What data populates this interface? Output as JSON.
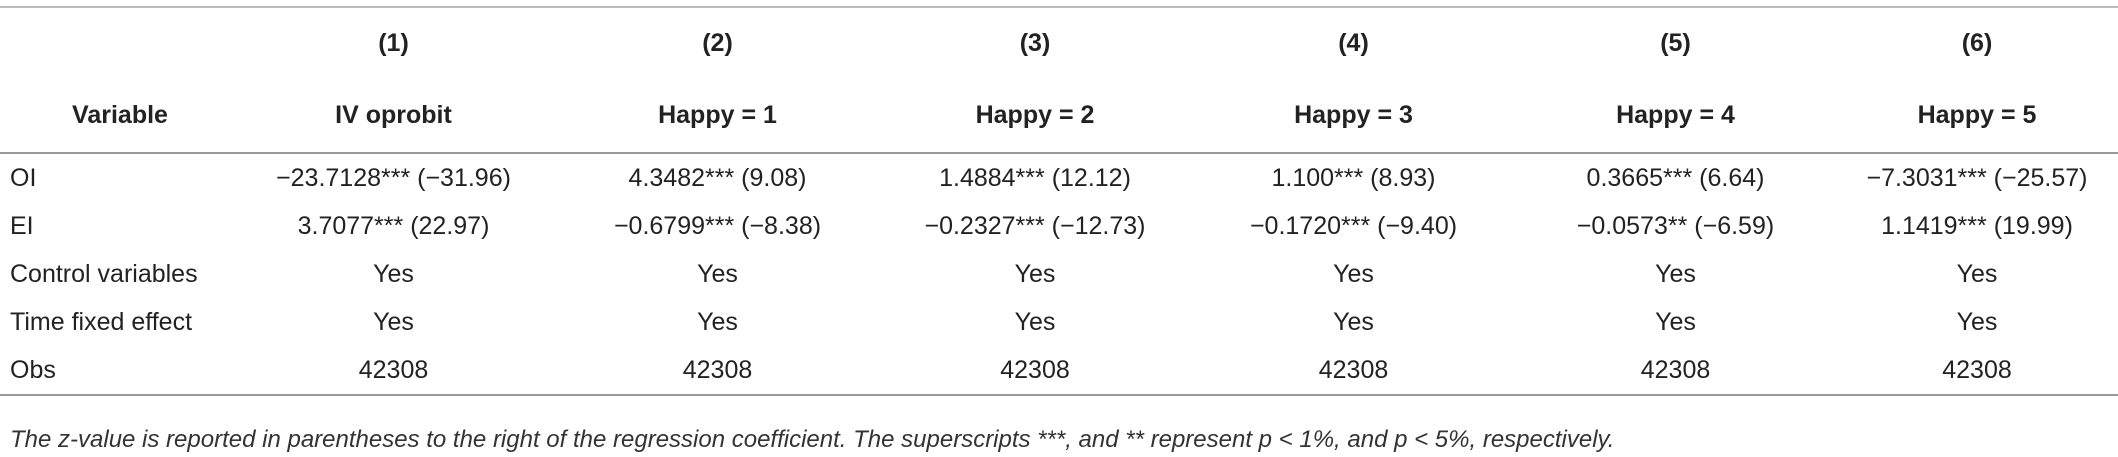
{
  "table": {
    "numbers": [
      "(1)",
      "(2)",
      "(3)",
      "(4)",
      "(5)",
      "(6)"
    ],
    "labels": [
      "Variable",
      "IV oprobit",
      "Happy = 1",
      "Happy = 2",
      "Happy = 3",
      "Happy = 4",
      "Happy = 5"
    ],
    "rows": [
      [
        "OI",
        "−23.7128*** (−31.96)",
        "4.3482*** (9.08)",
        "1.4884*** (12.12)",
        "1.100*** (8.93)",
        "0.3665*** (6.64)",
        "−7.3031*** (−25.57)"
      ],
      [
        "EI",
        "3.7077*** (22.97)",
        "−0.6799*** (−8.38)",
        "−0.2327*** (−12.73)",
        "−0.1720*** (−9.40)",
        "−0.0573** (−6.59)",
        "1.1419*** (19.99)"
      ],
      [
        "Control variables",
        "Yes",
        "Yes",
        "Yes",
        "Yes",
        "Yes",
        "Yes"
      ],
      [
        "Time fixed effect",
        "Yes",
        "Yes",
        "Yes",
        "Yes",
        "Yes",
        "Yes"
      ],
      [
        "Obs",
        "42308",
        "42308",
        "42308",
        "42308",
        "42308",
        "42308"
      ]
    ],
    "footnote": "The z-value is reported in parentheses to the right of the regression coefficient. The superscripts ***, and ** represent p < 1%, and p < 5%, respectively."
  }
}
